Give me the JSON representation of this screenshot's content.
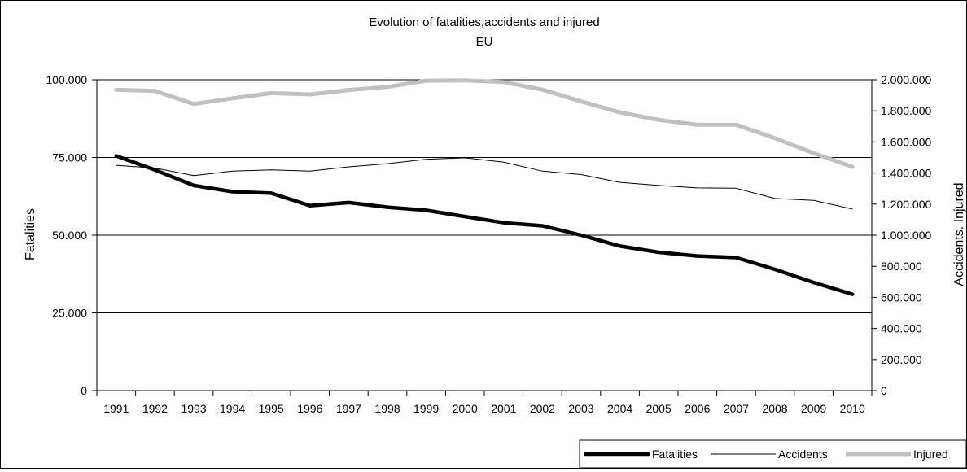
{
  "chart_data": {
    "type": "line",
    "title": "Evolution of fatalities,accidents and injured",
    "subtitle": "EU",
    "ylabel_left": "Fatalities",
    "ylabel_right": "Accidents. Injured",
    "x": [
      "1991",
      "1992",
      "1993",
      "1994",
      "1995",
      "1996",
      "1997",
      "1998",
      "1999",
      "2000",
      "2001",
      "2002",
      "2003",
      "2004",
      "2005",
      "2006",
      "2007",
      "2008",
      "2009",
      "2010"
    ],
    "ylim_left": [
      0,
      100000
    ],
    "ylim_right": [
      0,
      2000000
    ],
    "yticks_left": [
      "0",
      "25.000",
      "50.000",
      "75.000",
      "100.000"
    ],
    "yticks_right": [
      "0",
      "200.000",
      "400.000",
      "600.000",
      "800.000",
      "1.000.000",
      "1.200.000",
      "1.400.000",
      "1.600.000",
      "1.800.000",
      "2.000.000"
    ],
    "grid": "horizontal major (left axis)",
    "legend_position": "bottom-right",
    "series": [
      {
        "name": "Fatalities",
        "axis": "left",
        "color": "#000000",
        "values": [
          75500,
          71000,
          66000,
          64000,
          63500,
          59500,
          60500,
          59000,
          58000,
          56000,
          54000,
          53000,
          50000,
          46500,
          44500,
          43300,
          42800,
          39000,
          34800,
          31000
        ]
      },
      {
        "name": "Accidents",
        "axis": "right",
        "color": "#000000",
        "values": [
          1450000,
          1432000,
          1383000,
          1412000,
          1420000,
          1412000,
          1440000,
          1460000,
          1488000,
          1498000,
          1470000,
          1412000,
          1390000,
          1340000,
          1320000,
          1304000,
          1302000,
          1236000,
          1224000,
          1168000
        ]
      },
      {
        "name": "Injured",
        "axis": "right",
        "color": "#c0c0c0",
        "values": [
          1936000,
          1928000,
          1844000,
          1880000,
          1914000,
          1906000,
          1934000,
          1954000,
          1994000,
          1996000,
          1986000,
          1936000,
          1860000,
          1790000,
          1742000,
          1710000,
          1710000,
          1624000,
          1528000,
          1440000
        ]
      }
    ]
  }
}
